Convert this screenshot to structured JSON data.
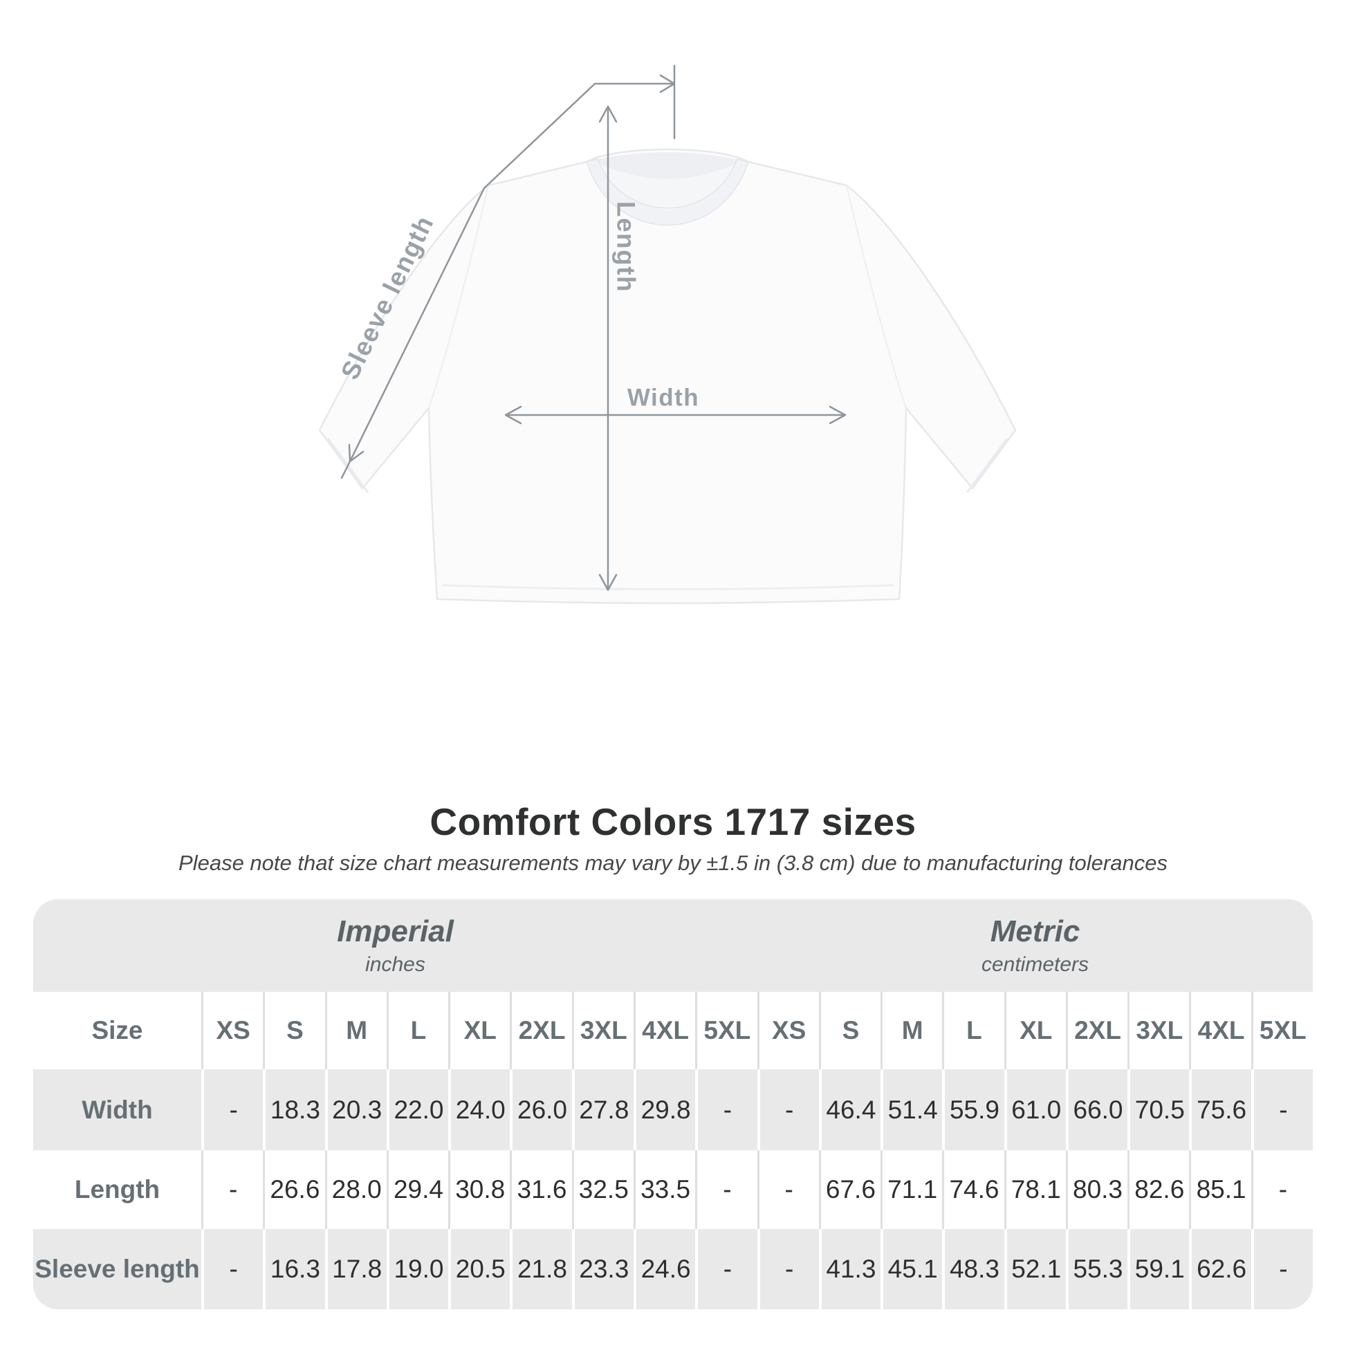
{
  "diagram": {
    "labels": {
      "sleeve_length": "Sleeve length",
      "length": "Length",
      "width": "Width"
    },
    "line_color": "#8f959a",
    "label_color": "#9aa1a7"
  },
  "title": "Comfort Colors 1717 sizes",
  "subtitle": "Please note that size chart measurements may vary by ±1.5 in (3.8 cm) due to manufacturing tolerances",
  "table": {
    "groups": [
      {
        "label": "Imperial",
        "unit": "inches"
      },
      {
        "label": "Metric",
        "unit": "centimeters"
      }
    ],
    "size_header": "Size",
    "sizes": [
      "XS",
      "S",
      "M",
      "L",
      "XL",
      "2XL",
      "3XL",
      "4XL",
      "5XL"
    ],
    "rows": [
      {
        "label": "Width",
        "imperial": [
          "-",
          "18.3",
          "20.3",
          "22.0",
          "24.0",
          "26.0",
          "27.8",
          "29.8",
          "-"
        ],
        "metric": [
          "-",
          "46.4",
          "51.4",
          "55.9",
          "61.0",
          "66.0",
          "70.5",
          "75.6",
          "-"
        ]
      },
      {
        "label": "Length",
        "imperial": [
          "-",
          "26.6",
          "28.0",
          "29.4",
          "30.8",
          "31.6",
          "32.5",
          "33.5",
          "-"
        ],
        "metric": [
          "-",
          "67.6",
          "71.1",
          "74.6",
          "78.1",
          "80.3",
          "82.6",
          "85.1",
          "-"
        ]
      },
      {
        "label": "Sleeve length",
        "imperial": [
          "-",
          "16.3",
          "17.8",
          "19.0",
          "20.5",
          "21.8",
          "23.3",
          "24.6",
          "-"
        ],
        "metric": [
          "-",
          "41.3",
          "45.1",
          "48.3",
          "52.1",
          "55.3",
          "59.1",
          "62.6",
          "-"
        ]
      }
    ],
    "stripe_color": "#e9e9e9"
  },
  "chart_data": {
    "type": "table",
    "title": "Comfort Colors 1717 sizes",
    "note": "Measurements may vary by ±1.5 in (3.8 cm) due to manufacturing tolerances",
    "units": {
      "imperial": "inches",
      "metric": "centimeters"
    },
    "sizes": [
      "XS",
      "S",
      "M",
      "L",
      "XL",
      "2XL",
      "3XL",
      "4XL",
      "5XL"
    ],
    "measurements": [
      {
        "name": "Width",
        "imperial_in": [
          null,
          18.3,
          20.3,
          22.0,
          24.0,
          26.0,
          27.8,
          29.8,
          null
        ],
        "metric_cm": [
          null,
          46.4,
          51.4,
          55.9,
          61.0,
          66.0,
          70.5,
          75.6,
          null
        ]
      },
      {
        "name": "Length",
        "imperial_in": [
          null,
          26.6,
          28.0,
          29.4,
          30.8,
          31.6,
          32.5,
          33.5,
          null
        ],
        "metric_cm": [
          null,
          67.6,
          71.1,
          74.6,
          78.1,
          80.3,
          82.6,
          85.1,
          null
        ]
      },
      {
        "name": "Sleeve length",
        "imperial_in": [
          null,
          16.3,
          17.8,
          19.0,
          20.5,
          21.8,
          23.3,
          24.6,
          null
        ],
        "metric_cm": [
          null,
          41.3,
          45.1,
          48.3,
          52.1,
          55.3,
          59.1,
          62.6,
          null
        ]
      }
    ]
  }
}
